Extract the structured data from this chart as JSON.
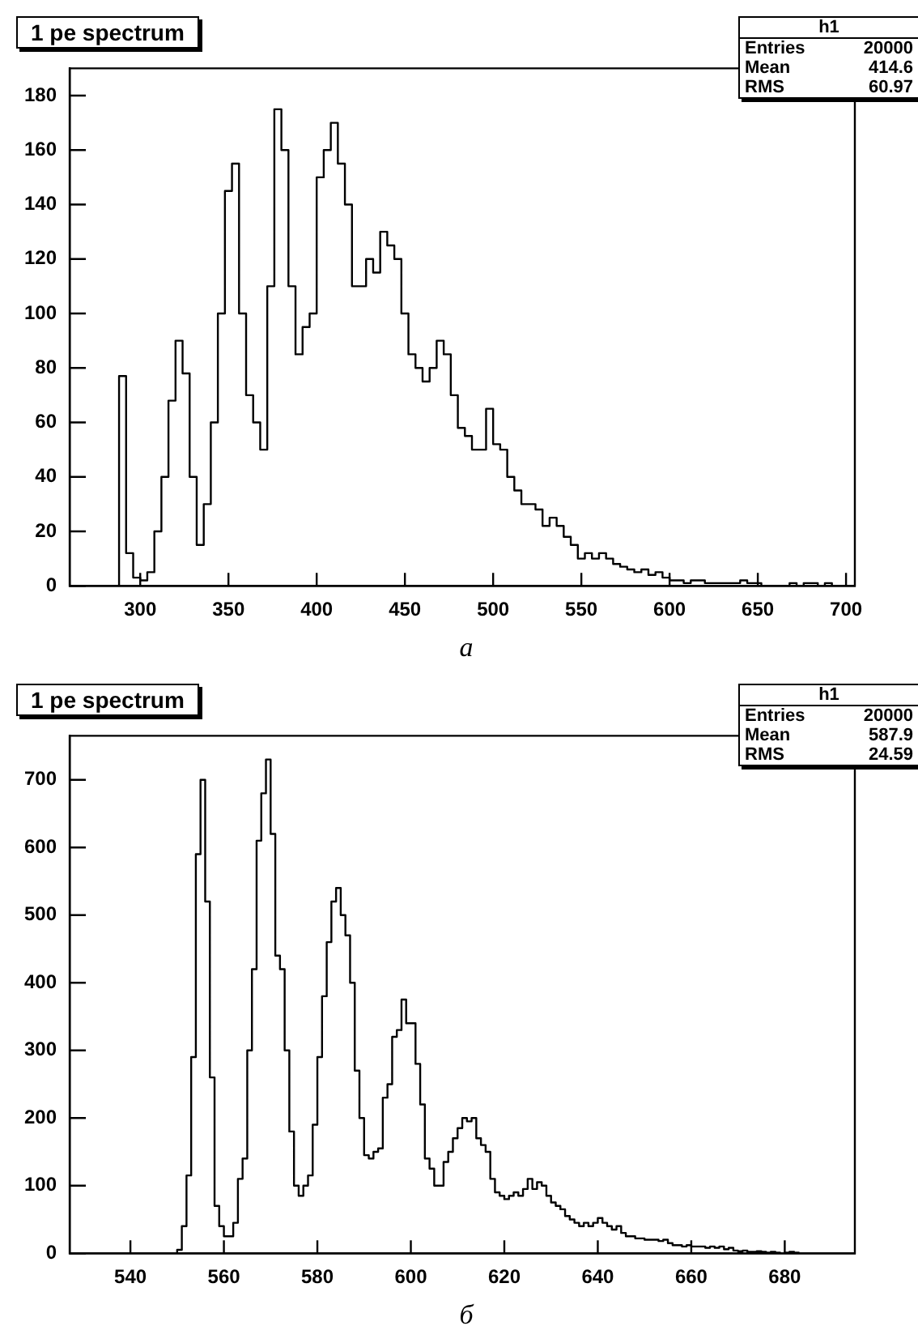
{
  "chart_data": [
    {
      "type": "histogram",
      "title": "1 pe spectrum",
      "color": "#000000",
      "grid": false,
      "legend": false,
      "annotations": [
        "h1",
        "Entries",
        "20000",
        "Mean",
        "414.6",
        "RMS",
        "60.97",
        "а"
      ],
      "xlim": [
        260,
        705
      ],
      "xticks": [
        300,
        350,
        400,
        450,
        500,
        550,
        600,
        650,
        700
      ],
      "ylim": [
        0,
        190
      ],
      "yticks": [
        0,
        20,
        40,
        60,
        80,
        100,
        120,
        140,
        160,
        180
      ],
      "bins": [
        280,
        284,
        288,
        292,
        296,
        300,
        304,
        308,
        312,
        316,
        320,
        324,
        328,
        332,
        336,
        340,
        344,
        348,
        352,
        356,
        360,
        364,
        368,
        372,
        376,
        380,
        384,
        388,
        392,
        396,
        400,
        404,
        408,
        412,
        416,
        420,
        424,
        428,
        432,
        436,
        440,
        444,
        448,
        452,
        456,
        460,
        464,
        468,
        472,
        476,
        480,
        484,
        488,
        492,
        496,
        500,
        504,
        508,
        512,
        516,
        520,
        524,
        528,
        532,
        536,
        540,
        544,
        548,
        552,
        556,
        560,
        564,
        568,
        572,
        576,
        580,
        584,
        588,
        592,
        596,
        600,
        604,
        608,
        612,
        616,
        620,
        624,
        628,
        632,
        636,
        640,
        644,
        648,
        652,
        656,
        660,
        664,
        668,
        672,
        676,
        680,
        684,
        688,
        692,
        696,
        700
      ],
      "values": [
        0,
        0,
        77,
        12,
        3,
        2,
        5,
        20,
        40,
        68,
        90,
        78,
        40,
        15,
        30,
        60,
        100,
        145,
        155,
        100,
        70,
        60,
        50,
        110,
        175,
        160,
        110,
        85,
        95,
        100,
        150,
        160,
        170,
        155,
        140,
        110,
        110,
        120,
        115,
        130,
        125,
        120,
        100,
        85,
        80,
        75,
        80,
        90,
        85,
        70,
        58,
        55,
        50,
        50,
        65,
        52,
        50,
        40,
        35,
        30,
        30,
        28,
        22,
        25,
        22,
        18,
        15,
        10,
        12,
        10,
        12,
        10,
        8,
        7,
        6,
        5,
        6,
        4,
        5,
        3,
        2,
        2,
        1,
        2,
        2,
        1,
        1,
        1,
        1,
        1,
        2,
        1,
        1,
        0,
        0,
        0,
        0,
        1,
        0,
        1,
        1,
        0,
        1,
        0,
        0
      ]
    },
    {
      "type": "histogram",
      "title": "1 pe spectrum",
      "color": "#000000",
      "grid": false,
      "legend": false,
      "annotations": [
        "h1",
        "Entries",
        "20000",
        "Mean",
        "587.9",
        "RMS",
        "24.59",
        "б"
      ],
      "xlim": [
        527,
        695
      ],
      "xticks": [
        540,
        560,
        580,
        600,
        620,
        640,
        660,
        680
      ],
      "ylim": [
        0,
        765
      ],
      "yticks": [
        0,
        100,
        200,
        300,
        400,
        500,
        600,
        700
      ],
      "bins": [
        549,
        550,
        551,
        552,
        553,
        554,
        555,
        556,
        557,
        558,
        559,
        560,
        561,
        562,
        563,
        564,
        565,
        566,
        567,
        568,
        569,
        570,
        571,
        572,
        573,
        574,
        575,
        576,
        577,
        578,
        579,
        580,
        581,
        582,
        583,
        584,
        585,
        586,
        587,
        588,
        589,
        590,
        591,
        592,
        593,
        594,
        595,
        596,
        597,
        598,
        599,
        600,
        601,
        602,
        603,
        604,
        605,
        606,
        607,
        608,
        609,
        610,
        611,
        612,
        613,
        614,
        615,
        616,
        617,
        618,
        619,
        620,
        621,
        622,
        623,
        624,
        625,
        626,
        627,
        628,
        629,
        630,
        631,
        632,
        633,
        634,
        635,
        636,
        637,
        638,
        639,
        640,
        641,
        642,
        643,
        644,
        645,
        646,
        647,
        648,
        649,
        650,
        651,
        652,
        653,
        654,
        655,
        656,
        657,
        658,
        659,
        660,
        661,
        662,
        663,
        664,
        665,
        666,
        667,
        668,
        669,
        670,
        671,
        672,
        673,
        674,
        675,
        676,
        677,
        678,
        679,
        680,
        681,
        682,
        683,
        684,
        685
      ],
      "values": [
        0,
        5,
        40,
        115,
        290,
        590,
        700,
        520,
        260,
        70,
        40,
        25,
        25,
        45,
        110,
        140,
        300,
        420,
        610,
        680,
        730,
        620,
        440,
        420,
        300,
        180,
        100,
        85,
        100,
        115,
        190,
        290,
        380,
        460,
        520,
        540,
        500,
        470,
        400,
        270,
        200,
        145,
        140,
        150,
        155,
        230,
        250,
        320,
        330,
        375,
        340,
        340,
        280,
        220,
        140,
        125,
        100,
        100,
        135,
        150,
        170,
        185,
        200,
        195,
        200,
        170,
        160,
        150,
        110,
        90,
        85,
        80,
        85,
        90,
        85,
        95,
        110,
        95,
        105,
        100,
        85,
        75,
        70,
        65,
        55,
        50,
        45,
        40,
        45,
        40,
        45,
        52,
        45,
        40,
        35,
        40,
        30,
        25,
        25,
        22,
        22,
        20,
        20,
        20,
        18,
        20,
        15,
        12,
        12,
        10,
        12,
        10,
        10,
        10,
        8,
        10,
        8,
        10,
        6,
        8,
        4,
        3,
        4,
        2,
        2,
        3,
        2,
        1,
        2,
        1,
        0,
        1,
        2,
        1,
        0,
        0
      ]
    }
  ]
}
